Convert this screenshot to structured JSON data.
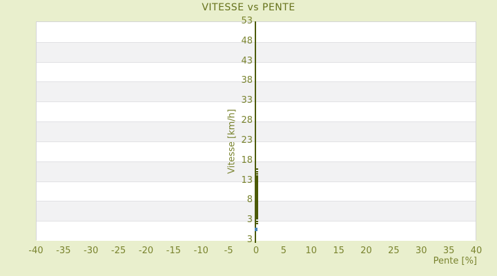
{
  "title": "VITESSE vs PENTE",
  "colors": {
    "background": "#e9efcd",
    "title_text": "#66721c",
    "tick_text": "#79832e",
    "axis_line": "#4c5a06",
    "series_main": "#4c5a06",
    "series_outlier": "#4a86b8",
    "band_gray": "#f2f2f3",
    "band_white": "#ffffff",
    "gridline": "#e1e1e4"
  },
  "chart_data": {
    "type": "scatter",
    "title": "VITESSE vs PENTE",
    "xlabel": "Pente [%]",
    "ylabel": "Vitesse [km/h]",
    "xlim": [
      -40,
      40
    ],
    "ylim": [
      -2,
      53
    ],
    "x_ticks": [
      -40,
      -35,
      -30,
      -25,
      -20,
      -15,
      -10,
      -5,
      0,
      5,
      10,
      15,
      20,
      25,
      30,
      35,
      40
    ],
    "y_tick_labels": [
      "53",
      "48",
      "43",
      "38",
      "33",
      "28",
      "23",
      "18",
      "13",
      "8",
      "3",
      "3"
    ],
    "grid": "horizontal-bands-alternating",
    "legend": "none",
    "series": [
      {
        "name": "vitesse-vs-pente-main",
        "color": "#4c5a06",
        "marker": "dash",
        "x": 0,
        "y_values": [
          15.8,
          15.25,
          14.7,
          14.2,
          14.0,
          13.8,
          13.6,
          13.4,
          13.2,
          13.0,
          12.8,
          12.6,
          12.4,
          12.2,
          12.0,
          11.8,
          11.6,
          11.4,
          11.2,
          11.0,
          10.8,
          10.6,
          10.4,
          10.2,
          10.0,
          9.8,
          9.6,
          9.4,
          9.2,
          9.0,
          8.8,
          8.6,
          8.4,
          8.2,
          8.0,
          7.8,
          7.6,
          7.4,
          7.2,
          7.0,
          6.8,
          6.6,
          6.4,
          6.2,
          6.0,
          5.8,
          5.6,
          5.4,
          5.2,
          5.0,
          4.8,
          4.6,
          4.4,
          4.2,
          4.0,
          3.8,
          3.6,
          3.4,
          2.65,
          2.1
        ]
      },
      {
        "name": "vitesse-vs-pente-outlier",
        "color": "#4a86b8",
        "marker": "square",
        "x": 0,
        "y_values": [
          0.85,
          0.5
        ]
      }
    ]
  }
}
